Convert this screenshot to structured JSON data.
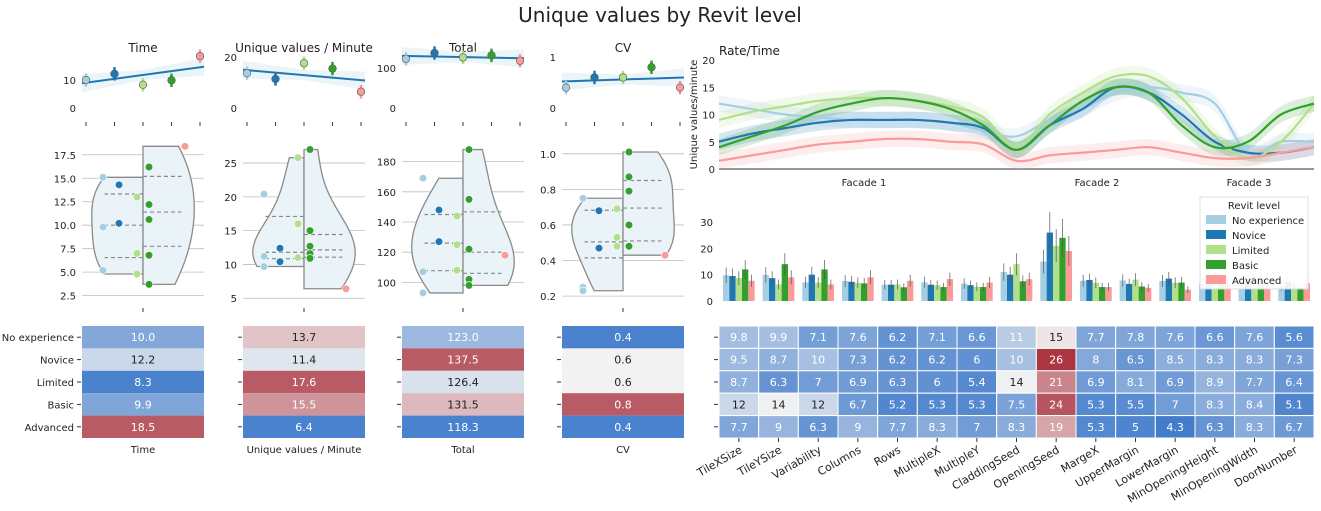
{
  "title": "Unique values by Revit level",
  "levels": [
    "No experience",
    "Novice",
    "Limited",
    "Basic",
    "Advanced"
  ],
  "colors": {
    "No experience": "#a6cee3",
    "Novice": "#1f78b4",
    "Limited": "#b2df8a",
    "Basic": "#33a02c",
    "Advanced": "#fb9a99",
    "heat_low": "#2166c4",
    "heat_mid": "#f2f2f2",
    "heat_high": "#ab3540",
    "violin_fill": "#eaf3f7",
    "violin_stroke": "#8a8a8a"
  },
  "chart_data": [
    {
      "type": "line",
      "panel": "Time-top",
      "title": "Time",
      "x": [
        "No experience",
        "Novice",
        "Limited",
        "Basic",
        "Advanced"
      ],
      "values": [
        10.0,
        12.2,
        8.3,
        9.9,
        18.5
      ],
      "yticks": [
        0,
        10
      ],
      "ylim": [
        0,
        20
      ]
    },
    {
      "type": "line",
      "panel": "UVM-top",
      "title": "Unique values / Minute",
      "x": [
        "No experience",
        "Novice",
        "Limited",
        "Basic",
        "Advanced"
      ],
      "values": [
        13.7,
        11.4,
        17.6,
        15.5,
        6.4
      ],
      "yticks": [
        0,
        20
      ],
      "ylim": [
        0,
        22
      ]
    },
    {
      "type": "line",
      "panel": "Total-top",
      "title": "Total",
      "x": [
        "No experience",
        "Novice",
        "Limited",
        "Basic",
        "Advanced"
      ],
      "values": [
        123.0,
        137.5,
        126.4,
        131.5,
        118.3
      ],
      "yticks": [
        0,
        100
      ],
      "ylim": [
        0,
        140
      ]
    },
    {
      "type": "line",
      "panel": "CV-top",
      "title": "CV",
      "x": [
        "No experience",
        "Novice",
        "Limited",
        "Basic",
        "Advanced"
      ],
      "values": [
        0.4,
        0.6,
        0.6,
        0.8,
        0.4
      ],
      "yticks": [
        0,
        1
      ],
      "ylim": [
        0,
        1.1
      ]
    },
    {
      "type": "scatter",
      "panel": "Time-violin",
      "yticks": [
        2.5,
        5.0,
        7.5,
        10.0,
        12.5,
        15.0,
        17.5
      ],
      "ytick_labels": [
        "2.5",
        "5.0",
        "7.5",
        "10.0",
        "12.5",
        "15.0",
        "17.5"
      ],
      "ylim": [
        1.5,
        19.5
      ],
      "points": [
        {
          "level": "No experience",
          "y": 15.1
        },
        {
          "level": "No experience",
          "y": 9.8
        },
        {
          "level": "No experience",
          "y": 5.2
        },
        {
          "level": "Novice",
          "y": 14.3
        },
        {
          "level": "Novice",
          "y": 10.2
        },
        {
          "level": "Limited",
          "y": 13.0
        },
        {
          "level": "Limited",
          "y": 7.0
        },
        {
          "level": "Limited",
          "y": 4.8
        },
        {
          "level": "Basic",
          "y": 16.2
        },
        {
          "level": "Basic",
          "y": 12.2
        },
        {
          "level": "Basic",
          "y": 10.6
        },
        {
          "level": "Basic",
          "y": 6.8
        },
        {
          "level": "Basic",
          "y": 3.7
        },
        {
          "level": "Advanced",
          "y": 18.4
        }
      ]
    },
    {
      "type": "scatter",
      "panel": "UVM-violin",
      "yticks": [
        5,
        10,
        15,
        20,
        25
      ],
      "ytick_labels": [
        "5",
        "10",
        "15",
        "20",
        "25"
      ],
      "ylim": [
        4,
        29
      ],
      "points": [
        {
          "level": "No experience",
          "y": 20.4
        },
        {
          "level": "No experience",
          "y": 11.2
        },
        {
          "level": "No experience",
          "y": 9.7
        },
        {
          "level": "Novice",
          "y": 12.4
        },
        {
          "level": "Novice",
          "y": 10.4
        },
        {
          "level": "Limited",
          "y": 25.8
        },
        {
          "level": "Limited",
          "y": 16.0
        },
        {
          "level": "Limited",
          "y": 11.0
        },
        {
          "level": "Basic",
          "y": 27.0
        },
        {
          "level": "Basic",
          "y": 15.0
        },
        {
          "level": "Basic",
          "y": 12.7
        },
        {
          "level": "Basic",
          "y": 11.6
        },
        {
          "level": "Basic",
          "y": 10.9
        },
        {
          "level": "Advanced",
          "y": 6.4
        }
      ]
    },
    {
      "type": "scatter",
      "panel": "Total-violin",
      "yticks": [
        100,
        120,
        140,
        160,
        180
      ],
      "ytick_labels": [
        "100",
        "120",
        "140",
        "160",
        "180"
      ],
      "ylim": [
        85,
        197
      ],
      "points": [
        {
          "level": "No experience",
          "y": 169
        },
        {
          "level": "No experience",
          "y": 107
        },
        {
          "level": "No experience",
          "y": 93
        },
        {
          "level": "Novice",
          "y": 148
        },
        {
          "level": "Novice",
          "y": 127
        },
        {
          "level": "Limited",
          "y": 144
        },
        {
          "level": "Limited",
          "y": 125
        },
        {
          "level": "Limited",
          "y": 108
        },
        {
          "level": "Basic",
          "y": 188
        },
        {
          "level": "Basic",
          "y": 155
        },
        {
          "level": "Basic",
          "y": 122
        },
        {
          "level": "Basic",
          "y": 102
        },
        {
          "level": "Basic",
          "y": 98
        },
        {
          "level": "Advanced",
          "y": 118
        }
      ]
    },
    {
      "type": "scatter",
      "panel": "CV-violin",
      "yticks": [
        0.2,
        0.4,
        0.6,
        0.8,
        1.0
      ],
      "ytick_labels": [
        "0.2",
        "0.4",
        "0.6",
        "0.8",
        "1.0"
      ],
      "ylim": [
        0.15,
        1.1
      ],
      "points": [
        {
          "level": "No experience",
          "y": 0.75
        },
        {
          "level": "No experience",
          "y": 0.25
        },
        {
          "level": "No experience",
          "y": 0.23
        },
        {
          "level": "Novice",
          "y": 0.68
        },
        {
          "level": "Novice",
          "y": 0.47
        },
        {
          "level": "Limited",
          "y": 0.69
        },
        {
          "level": "Limited",
          "y": 0.53
        },
        {
          "level": "Limited",
          "y": 0.48
        },
        {
          "level": "Basic",
          "y": 1.01
        },
        {
          "level": "Basic",
          "y": 0.87
        },
        {
          "level": "Basic",
          "y": 0.79
        },
        {
          "level": "Basic",
          "y": 0.6
        },
        {
          "level": "Basic",
          "y": 0.48
        },
        {
          "level": "Advanced",
          "y": 0.43
        }
      ]
    },
    {
      "type": "heatmap",
      "panel": "summary-heatmaps",
      "rows": [
        "No experience",
        "Novice",
        "Limited",
        "Basic",
        "Advanced"
      ],
      "columns": [
        "Time",
        "Unique values / Minute",
        "Total",
        "CV"
      ],
      "values": [
        [
          10.0,
          13.7,
          123.0,
          0.4
        ],
        [
          12.2,
          11.4,
          137.5,
          0.6
        ],
        [
          8.3,
          17.6,
          126.4,
          0.6
        ],
        [
          9.9,
          15.5,
          131.5,
          0.8
        ],
        [
          18.5,
          6.4,
          118.3,
          0.4
        ]
      ],
      "labels": [
        [
          "10.0",
          "13.7",
          "123.0",
          "0.4"
        ],
        [
          "12.2",
          "11.4",
          "137.5",
          "0.6"
        ],
        [
          "8.3",
          "17.6",
          "126.4",
          "0.6"
        ],
        [
          "9.9",
          "15.5",
          "131.5",
          "0.8"
        ],
        [
          "18.5",
          "6.4",
          "118.3",
          "0.4"
        ]
      ]
    },
    {
      "type": "line",
      "panel": "rate-time",
      "title": "Rate/Time",
      "ylabel": "Unique values/minute",
      "yticks": [
        0,
        5,
        10,
        15,
        20
      ],
      "ylim": [
        0,
        20
      ],
      "sections": [
        "Facade 1",
        "Facade 2",
        "Facade 3"
      ],
      "x": [
        0,
        0.5,
        1,
        1.5,
        2,
        2.5,
        3,
        3.5,
        4,
        4.5,
        5,
        5.5,
        6,
        6.5,
        7,
        7.5,
        8,
        8.5,
        9
      ],
      "series": [
        {
          "name": "No experience",
          "values": [
            12,
            11,
            10,
            9.5,
            9,
            9,
            9,
            8.5,
            7,
            6,
            9,
            11,
            14,
            15,
            14,
            12,
            3,
            5,
            5
          ]
        },
        {
          "name": "Novice",
          "values": [
            5,
            6.5,
            7.5,
            8.5,
            9,
            9,
            9,
            8.5,
            7.5,
            3.5,
            8,
            11,
            15,
            14,
            10,
            5,
            3,
            3,
            4
          ]
        },
        {
          "name": "Limited",
          "values": [
            9,
            10.5,
            11.5,
            12.5,
            13,
            13,
            12.5,
            11.5,
            9.5,
            4,
            10,
            14,
            17,
            17,
            13,
            6,
            2,
            5,
            12
          ]
        },
        {
          "name": "Basic",
          "values": [
            4,
            6,
            8,
            10.5,
            12,
            13,
            12.5,
            11,
            8,
            3.5,
            8,
            12.5,
            15,
            14,
            8,
            4,
            5,
            10,
            12
          ]
        },
        {
          "name": "Advanced",
          "values": [
            1.5,
            2.5,
            3.5,
            4.5,
            5,
            5.5,
            5.5,
            5,
            4.5,
            1.5,
            2.5,
            3,
            3.5,
            4,
            3,
            2,
            2,
            3,
            4
          ]
        }
      ]
    },
    {
      "type": "bar",
      "panel": "parameter-bars",
      "yticks": [
        0,
        10,
        20,
        30
      ],
      "ylim": [
        0,
        38
      ],
      "legend_title": "Revit level",
      "legend": "top-right",
      "categories": [
        "TileXSize",
        "TileYSize",
        "Variability",
        "Columns",
        "Rows",
        "MultipleX",
        "MultipleY",
        "CladdingSeed",
        "OpeningSeed",
        "MargeX",
        "UpperMargin",
        "LowerMargin",
        "MinOpeningHeight",
        "MinOpeningWidth",
        "DoorNumber"
      ],
      "series": [
        {
          "name": "No experience",
          "values": [
            9.8,
            9.9,
            7.1,
            7.6,
            6.2,
            7.1,
            6.6,
            11,
            15,
            7.7,
            7.8,
            7.6,
            6.6,
            7.6,
            5.6
          ]
        },
        {
          "name": "Novice",
          "values": [
            9.5,
            8.7,
            10,
            7.3,
            6.2,
            6.2,
            6,
            10,
            26,
            8,
            6.5,
            8.5,
            8.3,
            8.3,
            7.3
          ]
        },
        {
          "name": "Limited",
          "values": [
            8.7,
            6.3,
            7,
            6.9,
            6.3,
            6,
            5.4,
            14,
            21,
            6.9,
            8.1,
            6.9,
            8.9,
            7.7,
            6.4
          ]
        },
        {
          "name": "Basic",
          "values": [
            12,
            14,
            12,
            6.7,
            5.2,
            5.3,
            5.3,
            7.5,
            24,
            5.3,
            5.5,
            7,
            8.3,
            8.4,
            5.1
          ]
        },
        {
          "name": "Advanced",
          "values": [
            7.7,
            9,
            6.3,
            9,
            7.7,
            8.3,
            7,
            8.3,
            19,
            5.3,
            5,
            4.3,
            6.3,
            8.3,
            6.7
          ]
        }
      ]
    },
    {
      "type": "heatmap",
      "panel": "parameter-heatmap",
      "rows": [
        "No experience",
        "Novice",
        "Limited",
        "Basic",
        "Advanced"
      ],
      "columns": [
        "TileXSize",
        "TileYSize",
        "Variability",
        "Columns",
        "Rows",
        "MultipleX",
        "MultipleY",
        "CladdingSeed",
        "OpeningSeed",
        "MargeX",
        "UpperMargin",
        "LowerMargin",
        "MinOpeningHeight",
        "MinOpeningWidth",
        "DoorNumber"
      ],
      "labels": [
        [
          "9.8",
          "9.9",
          "7.1",
          "7.6",
          "6.2",
          "7.1",
          "6.6",
          "11",
          "15",
          "7.7",
          "7.8",
          "7.6",
          "6.6",
          "7.6",
          "5.6"
        ],
        [
          "9.5",
          "8.7",
          "10",
          "7.3",
          "6.2",
          "6.2",
          "6",
          "10",
          "26",
          "8",
          "6.5",
          "8.5",
          "8.3",
          "8.3",
          "7.3"
        ],
        [
          "8.7",
          "6.3",
          "7",
          "6.9",
          "6.3",
          "6",
          "5.4",
          "14",
          "21",
          "6.9",
          "8.1",
          "6.9",
          "8.9",
          "7.7",
          "6.4"
        ],
        [
          "12",
          "14",
          "12",
          "6.7",
          "5.2",
          "5.3",
          "5.3",
          "7.5",
          "24",
          "5.3",
          "5.5",
          "7",
          "8.3",
          "8.4",
          "5.1"
        ],
        [
          "7.7",
          "9",
          "6.3",
          "9",
          "7.7",
          "8.3",
          "7",
          "8.3",
          "19",
          "5.3",
          "5",
          "4.3",
          "6.3",
          "8.3",
          "6.7"
        ]
      ]
    }
  ]
}
